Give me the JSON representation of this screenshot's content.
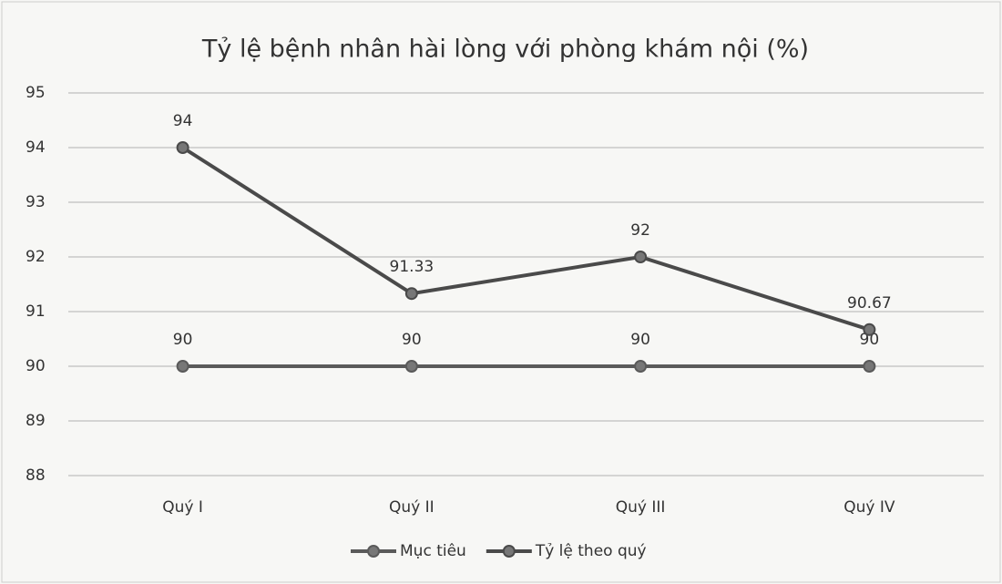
{
  "chart_data": {
    "type": "line",
    "title": "Tỷ lệ bệnh nhân hài lòng với phòng khám nội (%)",
    "categories": [
      "Quý I",
      "Quý II",
      "Quý III",
      "Quý IV"
    ],
    "series": [
      {
        "name": "Mục tiêu",
        "color": "#5a5a5a",
        "values": [
          90,
          90,
          90,
          90
        ]
      },
      {
        "name": "Tỷ lệ theo quý",
        "color": "#4a4a4a",
        "values": [
          94,
          91.33,
          92,
          90.67
        ]
      }
    ],
    "ylim": [
      88,
      95
    ],
    "yticks": [
      88,
      89,
      90,
      91,
      92,
      93,
      94,
      95
    ],
    "grid": true,
    "legend": "bottom"
  }
}
